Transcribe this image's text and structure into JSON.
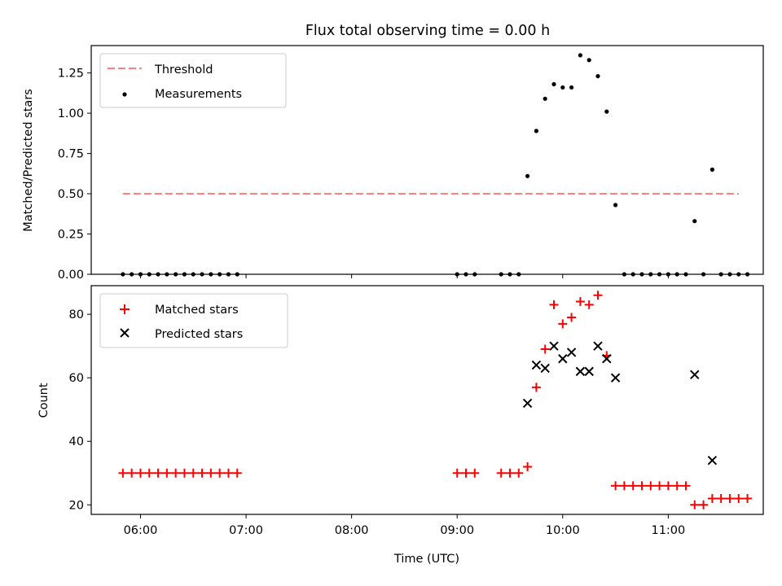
{
  "figure": {
    "title": "Flux total observing time = 0.00 h"
  },
  "chart_data": [
    {
      "type": "scatter",
      "panel": "top",
      "ylabel": "Matched/Predicted stars",
      "xlabel": "",
      "ylim": [
        0,
        1.42
      ],
      "yticks": [
        0.0,
        0.25,
        0.5,
        0.75,
        1.0,
        1.25
      ],
      "ytick_labels": [
        "0.00",
        "0.25",
        "0.50",
        "0.75",
        "1.00",
        "1.25"
      ],
      "legend": {
        "placement": "top-left",
        "entries": [
          "Threshold",
          "Measurements"
        ]
      },
      "threshold": {
        "name": "Threshold",
        "value": 0.5,
        "x_start": "05:50",
        "x_end": "11:40",
        "color": "#ff7f7f",
        "style": "dashed"
      },
      "series": [
        {
          "name": "Measurements",
          "marker": "dot",
          "color": "#000000",
          "points": [
            [
              "05:50",
              0.0
            ],
            [
              "05:55",
              0.0
            ],
            [
              "06:00",
              0.0
            ],
            [
              "06:05",
              0.0
            ],
            [
              "06:10",
              0.0
            ],
            [
              "06:15",
              0.0
            ],
            [
              "06:20",
              0.0
            ],
            [
              "06:25",
              0.0
            ],
            [
              "06:30",
              0.0
            ],
            [
              "06:35",
              0.0
            ],
            [
              "06:40",
              0.0
            ],
            [
              "06:45",
              0.0
            ],
            [
              "06:50",
              0.0
            ],
            [
              "06:55",
              0.0
            ],
            [
              "09:00",
              0.0
            ],
            [
              "09:05",
              0.0
            ],
            [
              "09:10",
              0.0
            ],
            [
              "09:25",
              0.0
            ],
            [
              "09:30",
              0.0
            ],
            [
              "09:35",
              0.0
            ],
            [
              "09:40",
              0.61
            ],
            [
              "09:45",
              0.89
            ],
            [
              "09:50",
              1.09
            ],
            [
              "09:55",
              1.18
            ],
            [
              "10:00",
              1.16
            ],
            [
              "10:05",
              1.16
            ],
            [
              "10:10",
              1.36
            ],
            [
              "10:15",
              1.33
            ],
            [
              "10:20",
              1.23
            ],
            [
              "10:25",
              1.01
            ],
            [
              "10:30",
              0.43
            ],
            [
              "10:35",
              0.0
            ],
            [
              "10:40",
              0.0
            ],
            [
              "10:45",
              0.0
            ],
            [
              "10:50",
              0.0
            ],
            [
              "10:55",
              0.0
            ],
            [
              "11:00",
              0.0
            ],
            [
              "11:05",
              0.0
            ],
            [
              "11:10",
              0.0
            ],
            [
              "11:15",
              0.33
            ],
            [
              "11:20",
              0.0
            ],
            [
              "11:25",
              0.65
            ],
            [
              "11:30",
              0.0
            ],
            [
              "11:35",
              0.0
            ],
            [
              "11:40",
              0.0
            ],
            [
              "11:45",
              0.0
            ]
          ]
        }
      ]
    },
    {
      "type": "scatter",
      "panel": "bottom",
      "ylabel": "Count",
      "xlabel": "Time (UTC)",
      "xlim": [
        "05:32",
        "11:54"
      ],
      "xticks": [
        "06:00",
        "07:00",
        "08:00",
        "09:00",
        "10:00",
        "11:00"
      ],
      "ylim": [
        17,
        89
      ],
      "yticks": [
        20,
        40,
        60,
        80
      ],
      "ytick_labels": [
        "20",
        "40",
        "60",
        "80"
      ],
      "legend": {
        "placement": "top-left",
        "entries": [
          "Matched stars",
          "Predicted stars"
        ]
      },
      "series": [
        {
          "name": "Matched stars",
          "marker": "plus",
          "color": "#ff0000",
          "points": [
            [
              "05:50",
              30
            ],
            [
              "05:55",
              30
            ],
            [
              "06:00",
              30
            ],
            [
              "06:05",
              30
            ],
            [
              "06:10",
              30
            ],
            [
              "06:15",
              30
            ],
            [
              "06:20",
              30
            ],
            [
              "06:25",
              30
            ],
            [
              "06:30",
              30
            ],
            [
              "06:35",
              30
            ],
            [
              "06:40",
              30
            ],
            [
              "06:45",
              30
            ],
            [
              "06:50",
              30
            ],
            [
              "06:55",
              30
            ],
            [
              "09:00",
              30
            ],
            [
              "09:05",
              30
            ],
            [
              "09:10",
              30
            ],
            [
              "09:25",
              30
            ],
            [
              "09:30",
              30
            ],
            [
              "09:35",
              30
            ],
            [
              "09:40",
              32
            ],
            [
              "09:45",
              57
            ],
            [
              "09:50",
              69
            ],
            [
              "09:55",
              83
            ],
            [
              "10:00",
              77
            ],
            [
              "10:05",
              79
            ],
            [
              "10:10",
              84
            ],
            [
              "10:15",
              83
            ],
            [
              "10:20",
              86
            ],
            [
              "10:25",
              67
            ],
            [
              "10:30",
              26
            ],
            [
              "10:35",
              26
            ],
            [
              "10:40",
              26
            ],
            [
              "10:45",
              26
            ],
            [
              "10:50",
              26
            ],
            [
              "10:55",
              26
            ],
            [
              "11:00",
              26
            ],
            [
              "11:05",
              26
            ],
            [
              "11:10",
              26
            ],
            [
              "11:15",
              20
            ],
            [
              "11:20",
              20
            ],
            [
              "11:25",
              22
            ],
            [
              "11:30",
              22
            ],
            [
              "11:35",
              22
            ],
            [
              "11:40",
              22
            ],
            [
              "11:45",
              22
            ]
          ]
        },
        {
          "name": "Predicted stars",
          "marker": "x",
          "color": "#000000",
          "points": [
            [
              "09:40",
              52
            ],
            [
              "09:45",
              64
            ],
            [
              "09:50",
              63
            ],
            [
              "09:55",
              70
            ],
            [
              "10:00",
              66
            ],
            [
              "10:05",
              68
            ],
            [
              "10:10",
              62
            ],
            [
              "10:15",
              62
            ],
            [
              "10:20",
              70
            ],
            [
              "10:25",
              66
            ],
            [
              "10:30",
              60
            ],
            [
              "11:15",
              61
            ],
            [
              "11:25",
              34
            ]
          ]
        }
      ]
    }
  ]
}
